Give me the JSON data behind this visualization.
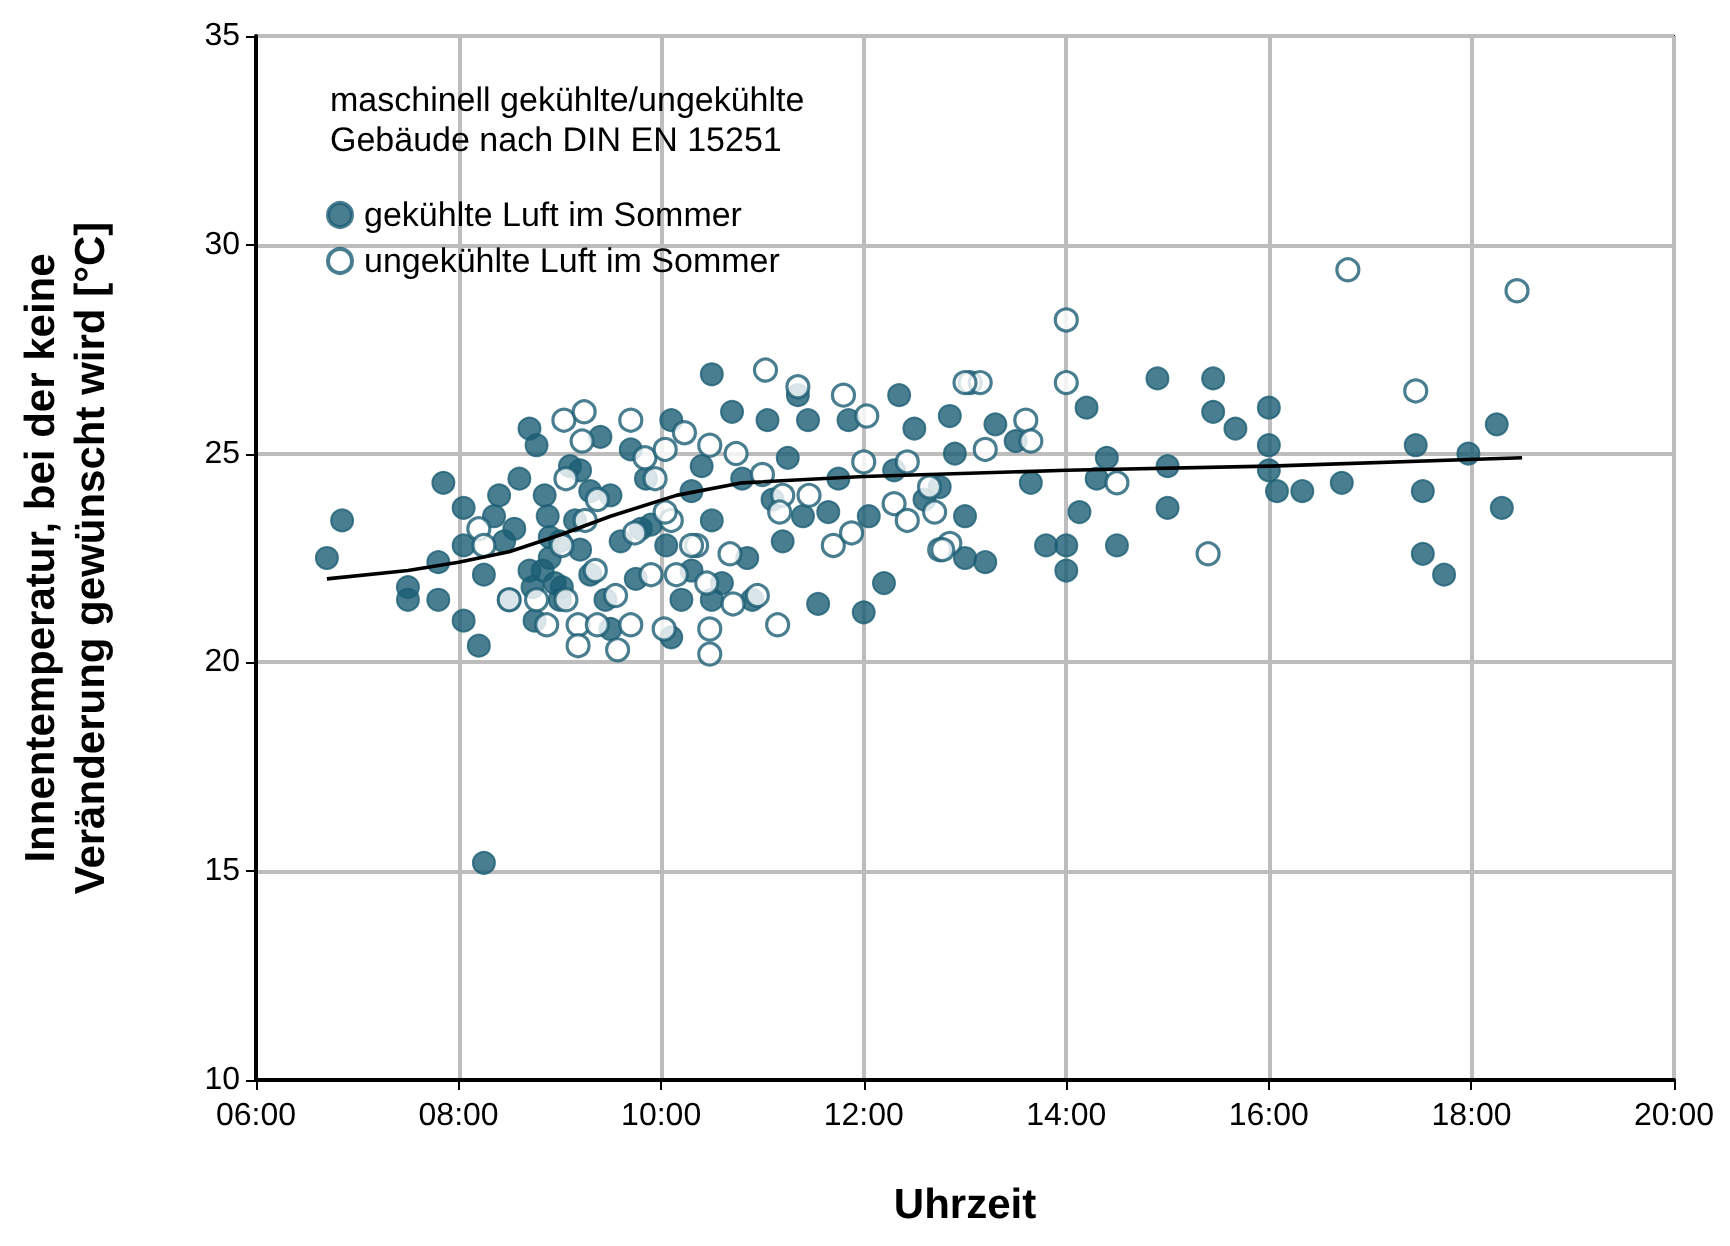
{
  "chart_data": {
    "type": "scatter",
    "xlabel": "Uhrzeit",
    "ylabel": "Innentemperatur, bei der keine\nVeränderung gewünscht wird [°C]",
    "legend_title": "maschinell gekühlte/ungekühlte\nGebäude nach DIN EN 15251",
    "legend": "top left",
    "grid": true,
    "marker": "circle",
    "xlim": [
      6,
      20
    ],
    "xticks": [
      {
        "value": 6,
        "label": "06:00"
      },
      {
        "value": 8,
        "label": "08:00"
      },
      {
        "value": 10,
        "label": "10:00"
      },
      {
        "value": 12,
        "label": "12:00"
      },
      {
        "value": 14,
        "label": "14:00"
      },
      {
        "value": 16,
        "label": "16:00"
      },
      {
        "value": 18,
        "label": "18:00"
      },
      {
        "value": 20,
        "label": "20:00"
      }
    ],
    "ylim": [
      10,
      35
    ],
    "yticks": [
      10,
      15,
      20,
      25,
      30,
      35
    ],
    "series": [
      {
        "name": "gekühlte Luft im Sommer",
        "color": "#1b5e74",
        "x": [
          6.7,
          6.85,
          7.5,
          7.5,
          7.8,
          7.85,
          7.8,
          8.05,
          8.05,
          8.05,
          8.2,
          8.25,
          8.25,
          8.35,
          8.4,
          8.45,
          8.5,
          8.55,
          8.6,
          8.7,
          8.75,
          8.85,
          8.9,
          8.9,
          8.95,
          9.0,
          9.1,
          9.15,
          9.2,
          9.3,
          9.3,
          9.45,
          9.5,
          9.6,
          9.7,
          9.75,
          9.85,
          9.9,
          10.05,
          10.1,
          10.2,
          10.3,
          10.4,
          10.5,
          10.5,
          10.6,
          10.7,
          10.8,
          10.85,
          10.9,
          11.05,
          11.1,
          11.2,
          11.25,
          11.35,
          11.4,
          11.45,
          11.55,
          11.65,
          11.75,
          11.85,
          12.0,
          12.05,
          12.2,
          12.3,
          12.35,
          12.5,
          12.6,
          12.75,
          12.85,
          12.9,
          13.0,
          13.0,
          13.2,
          13.3,
          13.5,
          13.65,
          13.8,
          14.0,
          14.0,
          14.13,
          14.2,
          14.3,
          14.4,
          14.5,
          14.9,
          15.0,
          15.0,
          15.45,
          15.45,
          15.67,
          16.0,
          16.0,
          16.0,
          16.08,
          16.33,
          16.72,
          17.45,
          17.52,
          17.52,
          17.73,
          17.97,
          18.25,
          18.3,
          9.0,
          8.83,
          9.02,
          8.73,
          8.88,
          9.2,
          9.4,
          9.8,
          10.3,
          10.5,
          9.5,
          8.77,
          8.7,
          10.1
        ],
        "values": [
          22.5,
          23.4,
          21.8,
          21.5,
          21.5,
          24.3,
          22.4,
          23.7,
          22.8,
          21.0,
          20.4,
          15.2,
          22.1,
          23.5,
          24.0,
          22.9,
          21.5,
          23.2,
          24.4,
          22.2,
          21.0,
          24.0,
          23.0,
          22.5,
          21.9,
          21.5,
          24.7,
          23.4,
          22.7,
          24.1,
          22.1,
          21.5,
          24.0,
          22.9,
          25.1,
          22.0,
          24.4,
          23.3,
          22.8,
          25.8,
          21.5,
          24.1,
          24.7,
          26.9,
          23.4,
          21.9,
          26.0,
          24.4,
          22.5,
          21.5,
          25.8,
          23.9,
          22.9,
          24.9,
          26.4,
          23.5,
          25.8,
          21.4,
          23.6,
          24.4,
          25.8,
          21.2,
          23.5,
          21.9,
          24.6,
          26.4,
          25.6,
          23.9,
          24.2,
          25.9,
          25.0,
          23.5,
          22.5,
          22.4,
          25.7,
          25.3,
          24.3,
          22.8,
          22.8,
          22.2,
          23.6,
          26.1,
          24.4,
          24.9,
          22.8,
          26.8,
          24.7,
          23.7,
          26.8,
          26.0,
          25.6,
          26.1,
          25.2,
          24.6,
          24.1,
          24.1,
          24.3,
          25.2,
          24.1,
          22.6,
          22.1,
          25.0,
          25.7,
          23.7,
          22.9,
          22.2,
          21.8,
          21.8,
          23.5,
          24.6,
          25.4,
          23.2,
          22.2,
          21.5,
          20.8,
          25.2,
          25.6,
          20.6
        ]
      },
      {
        "name": "ungekühlte Luft im Sommer",
        "color": "#1b5e74",
        "x": [
          16.78,
          18.45,
          17.45,
          15.4,
          14.0,
          14.0,
          13.05,
          13.15,
          13.6,
          13.65,
          13.2,
          14.5,
          12.65,
          12.85,
          12.75,
          11.03,
          11.35,
          11.8,
          12.03,
          13.0,
          9.04,
          9.24,
          9.22,
          9.7,
          9.84,
          10.04,
          10.23,
          10.48,
          10.74,
          11.0,
          11.2,
          11.46,
          11.17,
          9.06,
          9.37,
          9.25,
          9.74,
          10.1,
          10.35,
          10.68,
          9.02,
          9.35,
          9.55,
          9.9,
          10.15,
          10.45,
          8.77,
          9.18,
          9.37,
          9.7,
          10.03,
          10.48,
          10.71,
          11.15,
          10.95,
          9.18,
          9.57,
          10.48,
          11.7,
          11.88,
          12.3,
          12.43,
          12.7,
          12.0,
          12.43,
          12.78,
          8.2,
          8.25,
          8.5,
          8.87,
          9.06,
          9.94,
          10.04,
          10.3
        ],
        "values": [
          29.4,
          28.9,
          26.5,
          22.6,
          28.2,
          26.7,
          26.7,
          26.7,
          25.8,
          25.3,
          25.1,
          24.3,
          24.2,
          22.85,
          22.7,
          27.0,
          26.6,
          26.4,
          25.9,
          26.7,
          25.8,
          26.0,
          25.3,
          25.8,
          24.9,
          25.1,
          25.5,
          25.2,
          25.0,
          24.5,
          24.0,
          24.0,
          23.6,
          24.4,
          23.9,
          23.4,
          23.1,
          23.4,
          22.8,
          22.6,
          22.8,
          22.2,
          21.6,
          22.1,
          22.1,
          21.9,
          21.5,
          20.9,
          20.9,
          20.9,
          20.8,
          20.8,
          21.4,
          20.9,
          21.6,
          20.4,
          20.3,
          20.2,
          22.8,
          23.1,
          23.8,
          23.4,
          23.6,
          24.8,
          24.8,
          22.7,
          23.2,
          22.8,
          21.5,
          20.9,
          21.5,
          24.4,
          23.6,
          22.8
        ]
      },
      {
        "type": "line",
        "color": "#000000",
        "marker": "none",
        "x": [
          6.7,
          7.5,
          8.0,
          8.5,
          9.0,
          9.5,
          10.15,
          10.8,
          12,
          14,
          16,
          18.5
        ],
        "values": [
          22.0,
          22.2,
          22.4,
          22.65,
          23.05,
          23.5,
          24.0,
          24.3,
          24.45,
          24.6,
          24.7,
          24.9
        ]
      }
    ]
  }
}
